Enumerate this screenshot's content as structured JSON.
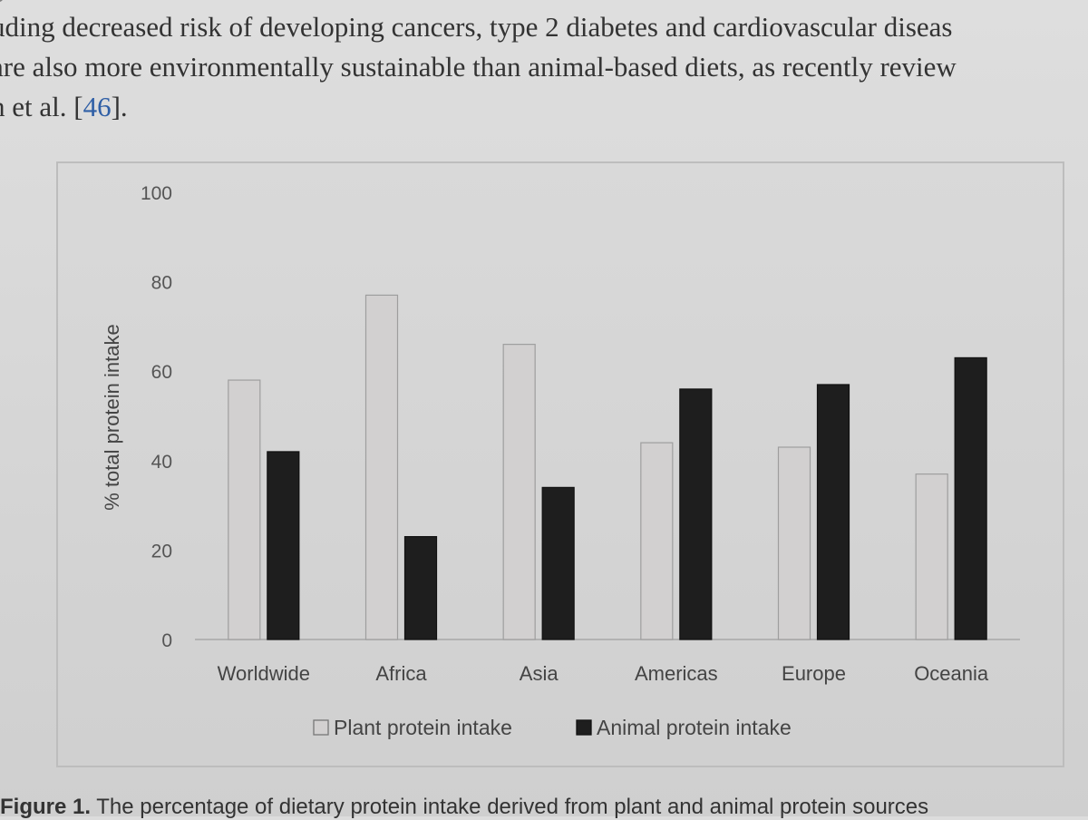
{
  "body_text": {
    "line_cut": "p",
    "line1": "uding decreased risk of developing cancers, type 2 diabetes and cardiovascular diseas",
    "line2": "are also more environmentally sustainable than animal-based diets, as recently review",
    "line3_pre": "h et al. [",
    "line3_ref": "46",
    "line3_post": "]."
  },
  "chart_data": {
    "type": "bar",
    "title": "",
    "xlabel": "",
    "ylabel": "% total protein intake",
    "ylim": [
      0,
      100
    ],
    "yticks": [
      0,
      20,
      40,
      60,
      80,
      100
    ],
    "categories": [
      "Worldwide",
      "Africa",
      "Asia",
      "Americas",
      "Europe",
      "Oceania"
    ],
    "series": [
      {
        "name": "Plant protein intake",
        "color": "#d2d0d0",
        "values": [
          58,
          77,
          66,
          44,
          43,
          37
        ]
      },
      {
        "name": "Animal protein intake",
        "color": "#1e1e1e",
        "values": [
          42,
          23,
          34,
          56,
          57,
          63
        ]
      }
    ],
    "legend_position": "bottom",
    "grid": false
  },
  "caption": {
    "label": "Figure 1.",
    "text": "The percentage of dietary protein intake derived from plant and animal protein sources"
  }
}
